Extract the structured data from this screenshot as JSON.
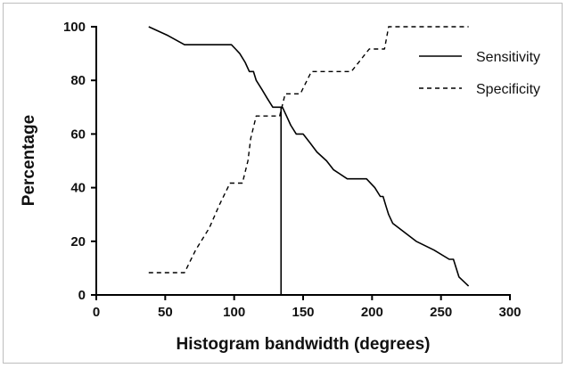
{
  "chart_data": {
    "type": "line",
    "title": "",
    "xlabel": "Histogram bandwidth (degrees)",
    "ylabel": "Percentage",
    "xlim": [
      0,
      300
    ],
    "ylim": [
      0,
      100
    ],
    "x_ticks": [
      0,
      50,
      100,
      150,
      200,
      250,
      300
    ],
    "y_ticks": [
      0,
      20,
      40,
      60,
      80,
      100
    ],
    "grid": false,
    "legend_position": "top-right",
    "series": [
      {
        "name": "Sensitivity",
        "style": "solid",
        "color": "#000000",
        "points": [
          [
            38,
            100
          ],
          [
            52,
            96.7
          ],
          [
            64,
            93.3
          ],
          [
            98,
            93.3
          ],
          [
            101,
            91.7
          ],
          [
            104,
            90
          ],
          [
            108,
            86.7
          ],
          [
            111,
            83.3
          ],
          [
            114,
            83.3
          ],
          [
            116,
            80
          ],
          [
            120,
            76.7
          ],
          [
            124,
            73.3
          ],
          [
            128,
            70
          ],
          [
            133,
            70
          ],
          [
            135,
            70
          ],
          [
            138,
            66.7
          ],
          [
            141,
            63.3
          ],
          [
            145,
            60
          ],
          [
            150,
            60
          ],
          [
            155,
            56.7
          ],
          [
            160,
            53.3
          ],
          [
            167,
            50
          ],
          [
            172,
            46.7
          ],
          [
            182,
            43.3
          ],
          [
            196,
            43.3
          ],
          [
            202,
            40
          ],
          [
            206,
            36.7
          ],
          [
            208,
            36.7
          ],
          [
            210,
            33.3
          ],
          [
            212,
            30
          ],
          [
            215,
            26.7
          ],
          [
            232,
            20
          ],
          [
            245,
            16.7
          ],
          [
            256,
            13.3
          ],
          [
            259,
            13.3
          ],
          [
            261,
            10
          ],
          [
            263,
            6.7
          ],
          [
            270,
            3.3
          ]
        ]
      },
      {
        "name": "Specificity",
        "style": "dashed",
        "color": "#000000",
        "points": [
          [
            38,
            8.3
          ],
          [
            64,
            8.3
          ],
          [
            72,
            16.7
          ],
          [
            82,
            25
          ],
          [
            89,
            33.3
          ],
          [
            97,
            41.7
          ],
          [
            101,
            41.7
          ],
          [
            106,
            41.7
          ],
          [
            110,
            50
          ],
          [
            112,
            58.3
          ],
          [
            116,
            66.7
          ],
          [
            133,
            66.7
          ],
          [
            137,
            75
          ],
          [
            148,
            75
          ],
          [
            156,
            83.3
          ],
          [
            185,
            83.3
          ],
          [
            198,
            91.7
          ],
          [
            209,
            91.7
          ],
          [
            212,
            100
          ],
          [
            270,
            100
          ]
        ]
      }
    ],
    "annotations": [
      {
        "type": "vertical-line",
        "x": 134,
        "y_from": 0,
        "y_to": 70
      }
    ]
  }
}
